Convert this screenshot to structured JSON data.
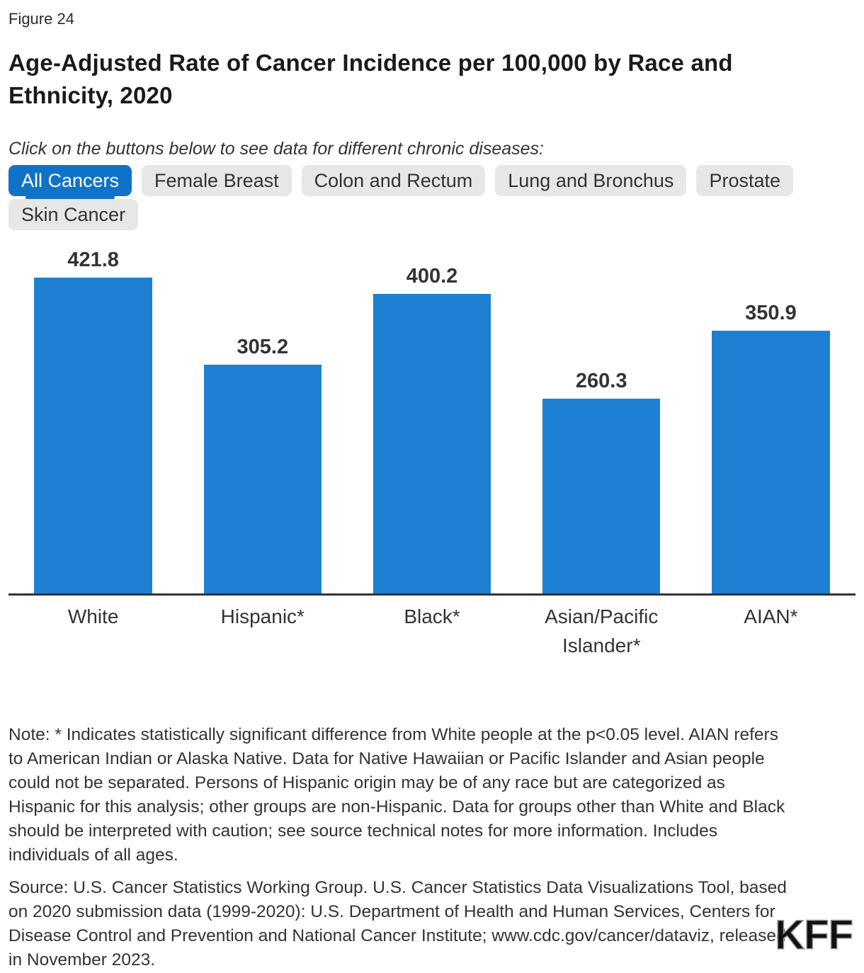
{
  "figure_label": "Figure 24",
  "title": "Age-Adjusted Rate of Cancer Incidence per 100,000 by Race and Ethnicity, 2020",
  "instruction": "Click on the buttons below to see data for different chronic diseases:",
  "buttons": [
    {
      "label": "All Cancers",
      "active": true
    },
    {
      "label": "Female Breast",
      "active": false
    },
    {
      "label": "Colon and Rectum",
      "active": false
    },
    {
      "label": "Lung and Bronchus",
      "active": false
    },
    {
      "label": "Prostate",
      "active": false
    },
    {
      "label": "Skin Cancer",
      "active": false
    }
  ],
  "chart_data": {
    "type": "bar",
    "title": "Age-Adjusted Rate of Cancer Incidence per 100,000 by Race and Ethnicity, 2020",
    "categories": [
      "White",
      "Hispanic*",
      "Black*",
      "Asian/Pacific Islander*",
      "AIAN*"
    ],
    "values": [
      421.8,
      305.2,
      400.2,
      260.3,
      350.9
    ],
    "data_labels": [
      "421.8",
      "305.2",
      "400.2",
      "260.3",
      "350.9"
    ],
    "xlabel": "",
    "ylabel": "",
    "ylim": [
      0,
      445
    ],
    "grid": false,
    "legend": false,
    "bar_color": "#1E80D2"
  },
  "note": "Note: * Indicates statistically significant difference from White people at the p<0.05 level. AIAN refers to American Indian or Alaska Native. Data for Native Hawaiian or Pacific Islander and Asian people could not be separated. Persons of Hispanic origin may be of any race but are categorized as Hispanic for this analysis; other groups are non-Hispanic. Data for groups other than White and Black should be interpreted with caution; see source technical notes for more information. Includes individuals of all ages.",
  "source": "Source: U.S. Cancer Statistics Working Group. U.S. Cancer Statistics Data Visualizations Tool, based on 2020 submission data (1999-2020): U.S. Department of Health and Human Services, Centers for Disease Control and Prevention and National Cancer Institute; www.cdc.gov/cancer/dataviz, released in November 2023.",
  "logo_text": "KFF",
  "colors": {
    "bar": "#1E80D2",
    "active_button_bg": "#0F73C9",
    "inactive_button_bg": "#e7e7e7",
    "axis": "#333333",
    "title_text": "#1a1a1a",
    "body_text": "#333333"
  }
}
